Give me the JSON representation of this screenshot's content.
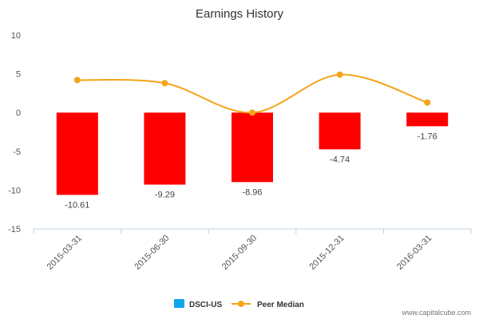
{
  "chart_data": {
    "type": "bar",
    "title": "Earnings History",
    "categories": [
      "2015-03-31",
      "2015-06-30",
      "2015-09-30",
      "2015-12-31",
      "2016-03-31"
    ],
    "series": [
      {
        "name": "DSCI-US",
        "type": "bar",
        "values": [
          -10.61,
          -9.29,
          -8.96,
          -4.74,
          -1.76
        ],
        "color": "#ff0000",
        "legend_color": "#0ea5e9"
      },
      {
        "name": "Peer Median",
        "type": "line",
        "values": [
          4.2,
          3.8,
          0.0,
          4.9,
          1.3
        ],
        "color": "#f5a31a"
      }
    ],
    "data_labels": [
      "-10.61",
      "-9.29",
      "-8.96",
      "-4.74",
      "-1.76"
    ],
    "yticks": [
      10,
      5,
      0,
      -5,
      -10,
      -15
    ],
    "ylim": [
      -15,
      10
    ],
    "grid": false,
    "legend_position": "bottom-center",
    "xlabel": "",
    "ylabel": ""
  },
  "credit": "www.capitalcube.com"
}
